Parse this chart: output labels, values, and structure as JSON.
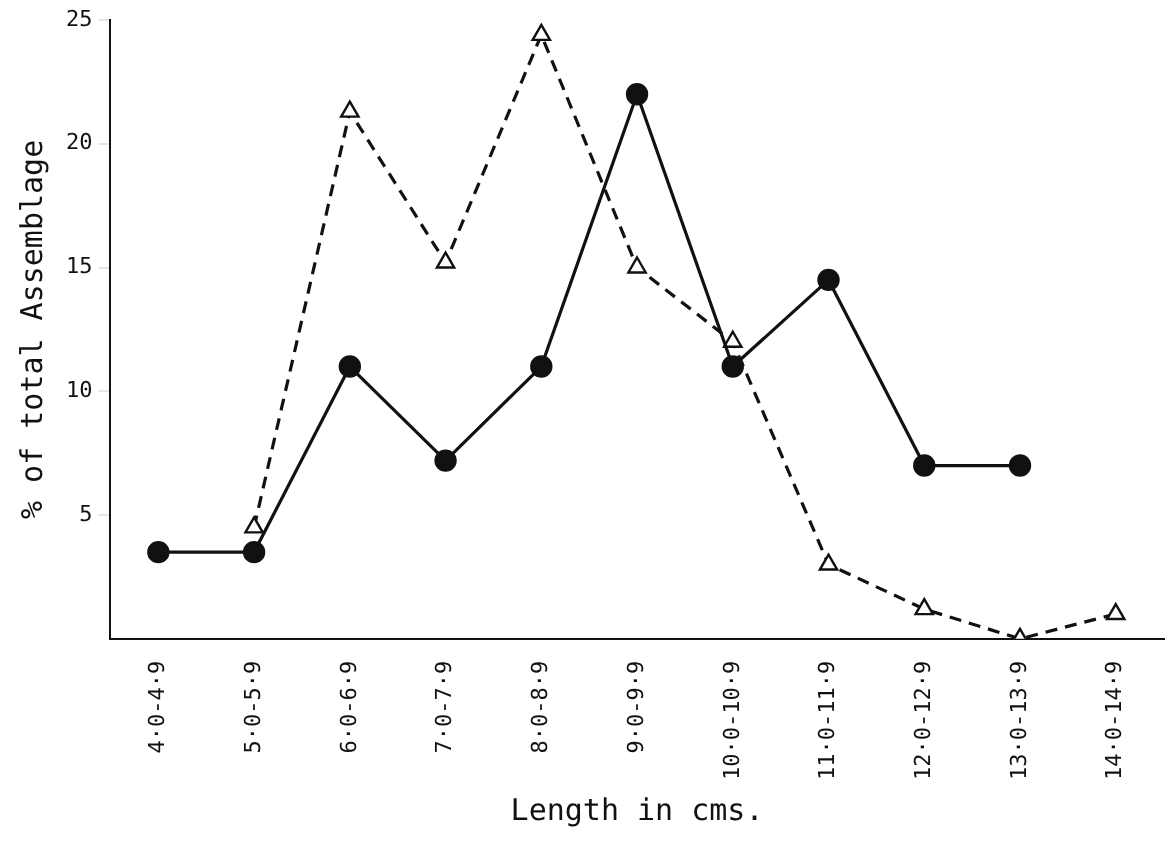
{
  "chart_data": {
    "type": "line",
    "xlabel": "Length in cms.",
    "ylabel": "% of total Assemblage",
    "categories": [
      "4·0-4·9",
      "5·0-5·9",
      "6·0-6·9",
      "7·0-7·9",
      "8·0-8·9",
      "9·0-9·9",
      "10·0-10·9",
      "11·0-11·9",
      "12·0-12·9",
      "13·0-13·9",
      "14·0-14·9"
    ],
    "series": [
      {
        "color": "#111111",
        "marker": "circle",
        "line_style": "solid",
        "values": [
          3.5,
          3.5,
          11,
          7.2,
          11,
          22,
          11,
          14.5,
          7,
          7,
          null
        ]
      },
      {
        "color": "#111111",
        "marker": "triangle",
        "line_style": "dashed",
        "values": [
          null,
          4.5,
          21.3,
          15.2,
          24.4,
          15,
          12,
          3,
          1.2,
          0,
          1
        ]
      }
    ],
    "ylim": [
      0,
      25
    ],
    "yticks": [
      5,
      10,
      15,
      20,
      25
    ],
    "grid": false,
    "legend": false
  }
}
